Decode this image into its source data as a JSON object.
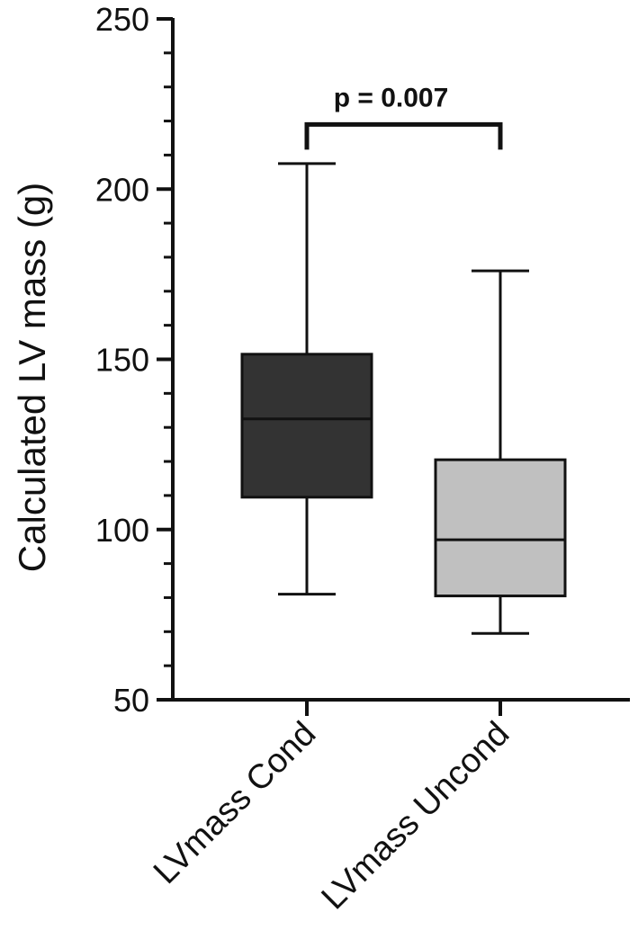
{
  "chart_data": {
    "type": "box",
    "title": "",
    "xlabel": "",
    "ylabel": "Calculated LV mass (g)",
    "ylim": [
      50,
      250
    ],
    "yticks_major": [
      50,
      100,
      150,
      200,
      250
    ],
    "yticks_minor_step": 10,
    "grid": false,
    "legend": "none",
    "categories": [
      "LVmass Cond",
      "LVmass Uncond"
    ],
    "series": [
      {
        "category": "LVmass Cond",
        "min": 81,
        "q1": 109.5,
        "median": 132.5,
        "q3": 151.5,
        "max": 207.5,
        "color": "#333333"
      },
      {
        "category": "LVmass Uncond",
        "min": 69.5,
        "q1": 80.5,
        "median": 97,
        "q3": 120.5,
        "max": 176,
        "color": "#c0c0c0"
      }
    ],
    "annotations": [
      {
        "text": "p = 0.007",
        "between": [
          "LVmass Cond",
          "LVmass Uncond"
        ],
        "bracket_y": 219
      }
    ]
  }
}
